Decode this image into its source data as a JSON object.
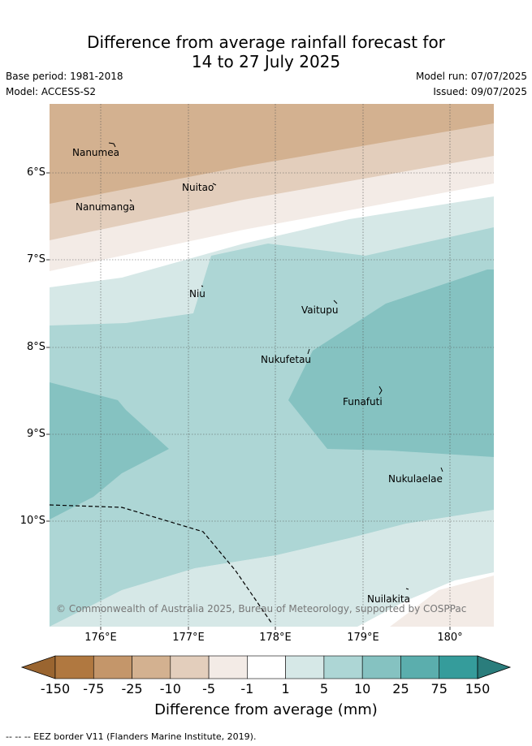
{
  "title": {
    "line1": "Difference from average rainfall forecast for",
    "line2": "14 to 27 July 2025"
  },
  "header": {
    "base_period": "Base period: 1981-2018",
    "model": "Model: ACCESS-S2",
    "model_run": "Model run: 07/07/2025",
    "issued": "Issued: 09/07/2025"
  },
  "map": {
    "lat_labels": [
      "6°S",
      "7°S",
      "8°S",
      "9°S",
      "10°S"
    ],
    "lon_labels": [
      "176°E",
      "177°E",
      "178°E",
      "179°E",
      "180°"
    ],
    "places": [
      {
        "name": "Nanumea"
      },
      {
        "name": "Nuitao"
      },
      {
        "name": "Nanumanga"
      },
      {
        "name": "Niu"
      },
      {
        "name": "Vaitupu"
      },
      {
        "name": "Nukufetau"
      },
      {
        "name": "Funafuti"
      },
      {
        "name": "Nukulaelae"
      },
      {
        "name": "Nuilakita"
      }
    ],
    "copyright": "© Commonwealth of Australia 2025, Bureau of Meteorology, supported by COSPPac"
  },
  "colorbar": {
    "ticks": [
      "-150",
      "-75",
      "-25",
      "-10",
      "-5",
      "-1",
      "1",
      "5",
      "10",
      "25",
      "75",
      "150"
    ],
    "colors": [
      "#b07840",
      "#c4966a",
      "#d3b190",
      "#e3cebc",
      "#f3ebe6",
      "#ffffff",
      "#d6e8e7",
      "#add6d5",
      "#85c2c1",
      "#5baead",
      "#359c9b"
    ],
    "under_color": "#9a6530",
    "over_color": "#2a7d7c",
    "label": "Difference from average (mm)"
  },
  "footer": {
    "legend": "-- -- -- EEZ border V11 (Flanders Marine Institute, 2019)."
  }
}
